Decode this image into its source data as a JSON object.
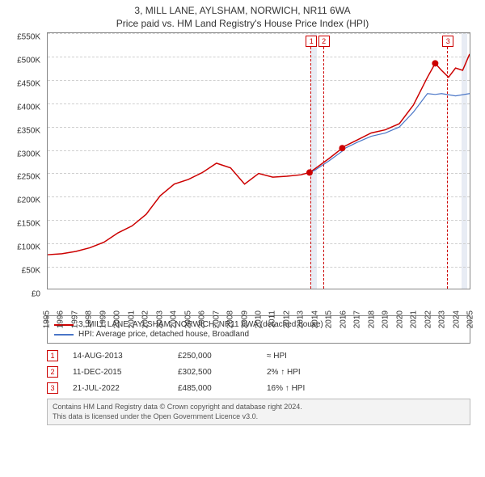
{
  "title": "3, MILL LANE, AYLSHAM, NORWICH, NR11 6WA",
  "subtitle": "Price paid vs. HM Land Registry's House Price Index (HPI)",
  "chart": {
    "type": "line",
    "background_color": "#ffffff",
    "grid_color": "#d0d0d0",
    "axis_color": "#888888",
    "shade_color": "#e8ecf4",
    "label_fontsize": 10,
    "y": {
      "min": 0,
      "max": 550000,
      "tick_step": 50000,
      "ticks": [
        "£0",
        "£50K",
        "£100K",
        "£150K",
        "£200K",
        "£250K",
        "£300K",
        "£350K",
        "£400K",
        "£450K",
        "£500K",
        "£550K"
      ]
    },
    "x": {
      "min": 1995,
      "max": 2025,
      "labels": [
        "1995",
        "1996",
        "1997",
        "1998",
        "1999",
        "2000",
        "2001",
        "2002",
        "2003",
        "2004",
        "2005",
        "2006",
        "2007",
        "2008",
        "2009",
        "2010",
        "2011",
        "2012",
        "2013",
        "2014",
        "2015",
        "2016",
        "2017",
        "2018",
        "2019",
        "2020",
        "2021",
        "2022",
        "2023",
        "2024",
        "2025"
      ]
    },
    "shaded_ranges": [
      {
        "from": 2013.62,
        "to": 2014.05
      },
      {
        "from": 2024.3,
        "to": 2024.7
      }
    ],
    "series": [
      {
        "id": "property",
        "label": "3, MILL LANE, AYLSHAM, NORWICH, NR11 6WA (detached house)",
        "color": "#cc0000",
        "width": 1.5,
        "points": [
          [
            1995,
            73000
          ],
          [
            1996,
            75000
          ],
          [
            1997,
            80000
          ],
          [
            1998,
            88000
          ],
          [
            1999,
            100000
          ],
          [
            2000,
            120000
          ],
          [
            2001,
            135000
          ],
          [
            2002,
            160000
          ],
          [
            2003,
            200000
          ],
          [
            2004,
            225000
          ],
          [
            2005,
            235000
          ],
          [
            2006,
            250000
          ],
          [
            2007,
            270000
          ],
          [
            2008,
            260000
          ],
          [
            2009,
            225000
          ],
          [
            2010,
            248000
          ],
          [
            2011,
            240000
          ],
          [
            2012,
            242000
          ],
          [
            2013,
            245000
          ],
          [
            2013.62,
            250000
          ],
          [
            2014,
            258000
          ],
          [
            2015,
            280000
          ],
          [
            2015.94,
            302500
          ],
          [
            2016,
            305000
          ],
          [
            2017,
            320000
          ],
          [
            2018,
            335000
          ],
          [
            2019,
            342000
          ],
          [
            2020,
            355000
          ],
          [
            2021,
            395000
          ],
          [
            2022,
            455000
          ],
          [
            2022.55,
            485000
          ],
          [
            2023,
            470000
          ],
          [
            2023.5,
            455000
          ],
          [
            2024,
            475000
          ],
          [
            2024.5,
            470000
          ],
          [
            2025,
            505000
          ]
        ]
      },
      {
        "id": "hpi",
        "label": "HPI: Average price, detached house, Broadland",
        "color": "#4a76c7",
        "width": 1.2,
        "points": [
          [
            2013.62,
            250000
          ],
          [
            2014,
            255000
          ],
          [
            2015,
            275000
          ],
          [
            2015.94,
            296000
          ],
          [
            2016,
            300000
          ],
          [
            2017,
            315000
          ],
          [
            2018,
            328000
          ],
          [
            2019,
            335000
          ],
          [
            2020,
            348000
          ],
          [
            2021,
            380000
          ],
          [
            2022,
            420000
          ],
          [
            2022.55,
            418000
          ],
          [
            2023,
            420000
          ],
          [
            2024,
            415000
          ],
          [
            2025,
            420000
          ]
        ]
      }
    ],
    "sale_dots": {
      "color": "#cc0000",
      "radius": 4,
      "points": [
        {
          "x": 2013.62,
          "y": 250000
        },
        {
          "x": 2015.94,
          "y": 302500
        },
        {
          "x": 2022.55,
          "y": 485000
        }
      ]
    },
    "markers": [
      {
        "n": "1",
        "x": 2013.62
      },
      {
        "n": "2",
        "x": 2014.5
      },
      {
        "n": "3",
        "x": 2023.3
      }
    ]
  },
  "legend": [
    {
      "color": "#cc0000",
      "label": "3, MILL LANE, AYLSHAM, NORWICH, NR11 6WA (detached house)"
    },
    {
      "color": "#4a76c7",
      "label": "HPI: Average price, detached house, Broadland"
    }
  ],
  "events": [
    {
      "n": "1",
      "date": "14-AUG-2013",
      "price": "£250,000",
      "diff": "≈ HPI"
    },
    {
      "n": "2",
      "date": "11-DEC-2015",
      "price": "£302,500",
      "diff": "2% ↑ HPI"
    },
    {
      "n": "3",
      "date": "21-JUL-2022",
      "price": "£485,000",
      "diff": "16% ↑ HPI"
    }
  ],
  "footer": {
    "line1": "Contains HM Land Registry data © Crown copyright and database right 2024.",
    "line2": "This data is licensed under the Open Government Licence v3.0."
  }
}
